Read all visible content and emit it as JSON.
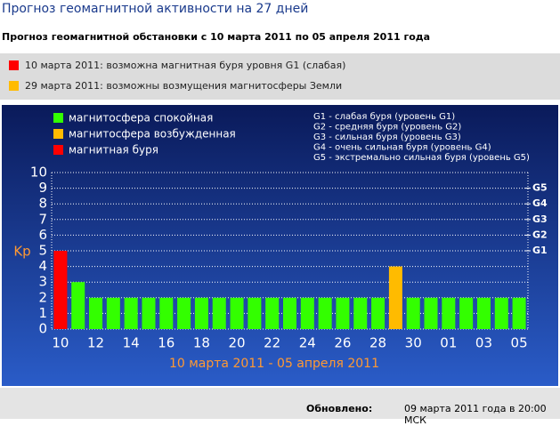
{
  "header": {
    "title": "Прогноз геомагнитной активности на 27 дней",
    "subtitle": "Прогноз геомагнитной обстановки с 10 марта 2011 по 05 апреля 2011 года"
  },
  "alerts": [
    {
      "color": "#ff0000",
      "text": "10 марта 2011: возможна магнитная буря уровня G1 (слабая)"
    },
    {
      "color": "#ffbb00",
      "text": "29 марта 2011: возможны возмущения магнитосферы Земли"
    }
  ],
  "chart_data": {
    "type": "bar",
    "categories": [
      "10",
      null,
      "12",
      null,
      "14",
      null,
      "16",
      null,
      "18",
      null,
      "20",
      null,
      "22",
      null,
      "24",
      null,
      "26",
      null,
      "28",
      null,
      "30",
      null,
      "01",
      null,
      "03",
      null,
      "05"
    ],
    "values": [
      5,
      3,
      2,
      2,
      2,
      2,
      2,
      2,
      2,
      2,
      2,
      2,
      2,
      2,
      2,
      2,
      2,
      2,
      2,
      4,
      2,
      2,
      2,
      2,
      2,
      2,
      2
    ],
    "colors": [
      "#ff0000",
      "#33ff00",
      "#33ff00",
      "#33ff00",
      "#33ff00",
      "#33ff00",
      "#33ff00",
      "#33ff00",
      "#33ff00",
      "#33ff00",
      "#33ff00",
      "#33ff00",
      "#33ff00",
      "#33ff00",
      "#33ff00",
      "#33ff00",
      "#33ff00",
      "#33ff00",
      "#33ff00",
      "#ffbb00",
      "#33ff00",
      "#33ff00",
      "#33ff00",
      "#33ff00",
      "#33ff00",
      "#33ff00",
      "#33ff00"
    ],
    "legend": [
      {
        "name": "магнитосфера спокойная",
        "color": "#33ff00"
      },
      {
        "name": "магнитосфера возбужденная",
        "color": "#ffbb00"
      },
      {
        "name": "магнитная буря",
        "color": "#ff0000"
      }
    ],
    "notes": [
      "G1 - слабая буря (уровень G1)",
      "G2 - средняя буря (уровень G2)",
      "G3 - сильная буря (уровень G3)",
      "G4 - очень сильная буря (уровень G4)",
      "G5 - экстремально сильная буря (уровень G5)"
    ],
    "ylabel": "Kp",
    "xlabel": "10 марта 2011 - 05 апреля 2011",
    "ylim": [
      0,
      10
    ],
    "yticks": [
      0,
      1,
      2,
      3,
      4,
      5,
      6,
      7,
      8,
      9,
      10
    ],
    "y2lim": [
      0,
      10
    ],
    "y2ticks": [
      {
        "value": 5,
        "label": "G1"
      },
      {
        "value": 6,
        "label": "G2"
      },
      {
        "value": 7,
        "label": "G3"
      },
      {
        "value": 8,
        "label": "G4"
      },
      {
        "value": 9,
        "label": "G5"
      }
    ],
    "grid": true
  },
  "footer": {
    "label": "Обновлено:",
    "text": "09 марта 2011 года в 20:00 МСК"
  }
}
